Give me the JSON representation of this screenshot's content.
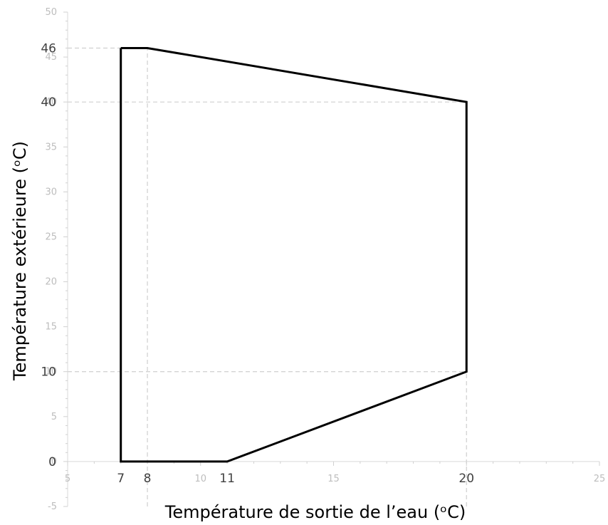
{
  "chart_data": {
    "type": "line",
    "title": "",
    "xlabel": "Température de sortie de l’eau (ᵒC)",
    "ylabel": "Température extérieure (ᵒC)",
    "xlim": [
      5,
      25
    ],
    "ylim": [
      -5,
      50
    ],
    "x_ticks": [
      5,
      10,
      15,
      20,
      25
    ],
    "y_ticks": [
      -5,
      0,
      5,
      10,
      15,
      20,
      25,
      30,
      35,
      40,
      45,
      50
    ],
    "grid": false,
    "legend": "none",
    "annotation_x": [
      7,
      8,
      11,
      20
    ],
    "annotation_y": [
      0,
      10,
      40,
      46
    ],
    "guides": [
      {
        "orientation": "horizontal",
        "value": 46,
        "from": 5,
        "to": 8
      },
      {
        "orientation": "horizontal",
        "value": 40,
        "from": 5,
        "to": 20
      },
      {
        "orientation": "horizontal",
        "value": 10,
        "from": 5,
        "to": 20
      },
      {
        "orientation": "vertical",
        "value": 8,
        "from": -5,
        "to": 46
      },
      {
        "orientation": "vertical",
        "value": 20,
        "from": -5,
        "to": 10
      }
    ],
    "series": [
      {
        "x": [
          7,
          8,
          20,
          20,
          11,
          7,
          7
        ],
        "y": [
          46,
          46,
          40,
          10,
          0,
          0,
          46
        ],
        "color": "#000000"
      }
    ]
  }
}
